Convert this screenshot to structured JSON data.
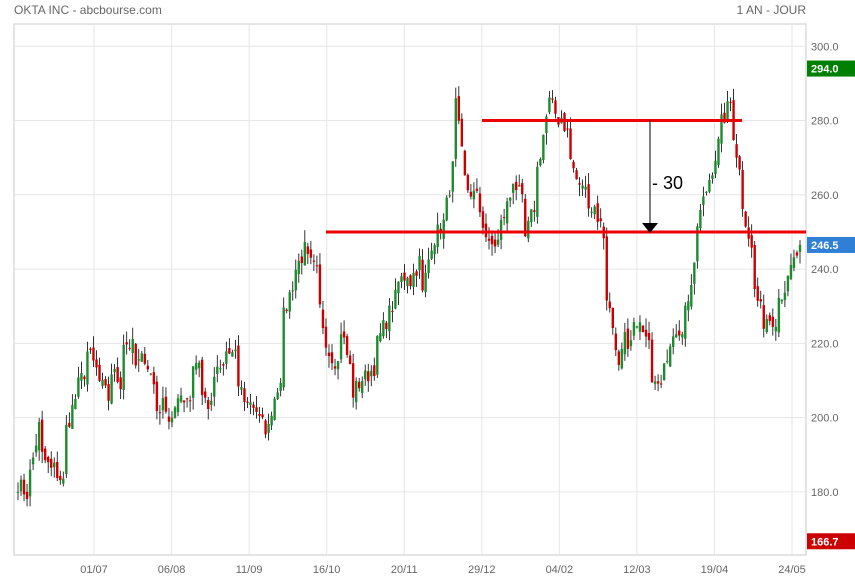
{
  "header": {
    "title": "OKTA INC - abcbourse.com",
    "period": "1 AN - JOUR"
  },
  "chart_data": {
    "type": "candlestick",
    "title": "OKTA INC - abcbourse.com",
    "period": "1 AN - JOUR",
    "ylim": [
      163,
      306
    ],
    "yticks": [
      180,
      200,
      220,
      240,
      260,
      280,
      300
    ],
    "ytick_labels": [
      "180.0",
      "200.0",
      "220.0",
      "240.0",
      "260.0",
      "280.0",
      "300.0"
    ],
    "xtick_labels": [
      "01/07",
      "06/08",
      "11/09",
      "16/10",
      "20/11",
      "29/12",
      "04/02",
      "12/03",
      "19/04",
      "24/05"
    ],
    "grid": true,
    "up_color": "#1e8c2e",
    "down_color": "#cc0000",
    "price_markers": [
      {
        "value": 294.0,
        "label": "294.0",
        "color": "#008000"
      },
      {
        "value": 246.5,
        "label": "246.5",
        "color": "#2f7fd6"
      },
      {
        "value": 166.7,
        "label": "166.7",
        "color": "#cc0000"
      }
    ],
    "annotations": {
      "resistance_line": {
        "value": 280,
        "color": "#ee0000"
      },
      "neckline": {
        "value": 250,
        "color": "#ee0000"
      },
      "target_arrow": {
        "from": 280,
        "to": 250,
        "label": "- 30"
      }
    },
    "ohlc_anchors": [
      [
        182,
        178
      ],
      [
        184,
        202
      ],
      [
        190,
        185
      ],
      [
        187,
        180
      ],
      [
        195,
        205
      ],
      [
        207,
        213
      ],
      [
        218,
        212
      ],
      [
        210,
        203
      ],
      [
        213,
        207
      ],
      [
        221,
        220
      ],
      [
        213,
        216
      ],
      [
        217,
        208
      ],
      [
        202,
        205
      ],
      [
        199,
        203
      ],
      [
        206,
        204
      ],
      [
        214,
        218
      ],
      [
        206,
        200
      ],
      [
        211,
        213
      ],
      [
        218,
        217
      ],
      [
        210,
        203
      ],
      [
        206,
        201
      ],
      [
        199,
        195
      ],
      [
        202,
        211
      ],
      [
        226,
        237
      ],
      [
        239,
        246
      ],
      [
        243,
        240
      ],
      [
        233,
        218
      ],
      [
        218,
        212
      ],
      [
        225,
        213
      ],
      [
        206,
        211
      ],
      [
        210,
        213
      ],
      [
        218,
        226
      ],
      [
        226,
        233
      ],
      [
        236,
        240
      ],
      [
        236,
        245
      ],
      [
        230,
        248
      ],
      [
        247,
        253
      ],
      [
        252,
        268
      ],
      [
        286,
        260
      ],
      [
        262,
        259
      ],
      [
        258,
        245
      ],
      [
        246,
        247
      ],
      [
        252,
        261
      ],
      [
        265,
        258
      ],
      [
        247,
        257
      ],
      [
        264,
        281
      ],
      [
        286,
        280
      ],
      [
        283,
        276
      ],
      [
        270,
        259
      ],
      [
        264,
        255
      ],
      [
        258,
        251
      ],
      [
        236,
        222
      ],
      [
        209,
        226
      ],
      [
        216,
        230
      ],
      [
        225,
        219
      ],
      [
        212,
        210
      ],
      [
        216,
        219
      ],
      [
        224,
        223
      ],
      [
        229,
        240
      ],
      [
        251,
        263
      ],
      [
        263,
        274
      ],
      [
        278,
        286
      ],
      [
        281,
        262
      ],
      [
        258,
        243
      ],
      [
        235,
        224
      ],
      [
        227,
        226
      ],
      [
        232,
        236
      ],
      [
        238,
        246
      ],
      [
        246.5,
        246.5
      ]
    ]
  }
}
